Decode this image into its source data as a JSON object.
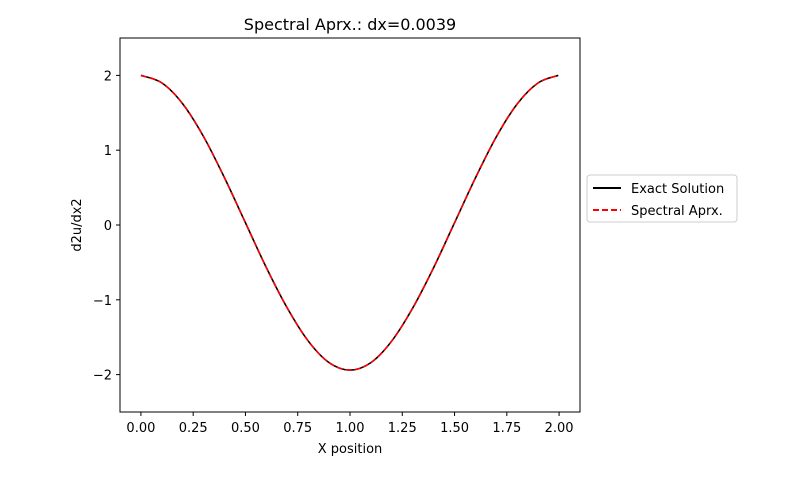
{
  "chart_data": {
    "type": "line",
    "title": "Spectral Aprx.: dx=0.0039",
    "xlabel": "X position",
    "ylabel": "d2u/dx2",
    "xlim": [
      -0.1,
      2.1
    ],
    "ylim": [
      -2.5,
      2.5
    ],
    "x_ticks": [
      0.0,
      0.25,
      0.5,
      0.75,
      1.0,
      1.25,
      1.5,
      1.75,
      2.0
    ],
    "x_tick_labels": [
      "0.00",
      "0.25",
      "0.50",
      "0.75",
      "1.00",
      "1.25",
      "1.50",
      "1.75",
      "2.00"
    ],
    "y_ticks": [
      -2,
      -1,
      0,
      1,
      2
    ],
    "y_tick_labels": [
      "−2",
      "−1",
      "0",
      "1",
      "2"
    ],
    "grid": false,
    "legend_position": "outside-right",
    "series": [
      {
        "name": "Exact Solution",
        "color": "#000000",
        "dash": "solid",
        "x": [
          0.0,
          0.1,
          0.2,
          0.3,
          0.4,
          0.5,
          0.6,
          0.7,
          0.8,
          0.9,
          1.0,
          1.1,
          1.2,
          1.3,
          1.4,
          1.5,
          1.6,
          1.7,
          1.8,
          1.9,
          1.996
        ],
        "y": [
          2.0,
          1.9,
          1.62,
          1.18,
          0.63,
          0.03,
          -0.57,
          -1.11,
          -1.55,
          -1.84,
          -1.94,
          -1.84,
          -1.55,
          -1.11,
          -0.57,
          0.03,
          0.63,
          1.18,
          1.62,
          1.9,
          2.0
        ]
      },
      {
        "name": "Spectral Aprx.",
        "color": "#ff0000",
        "dash": "dashed",
        "x": [
          0.0,
          0.1,
          0.2,
          0.3,
          0.4,
          0.5,
          0.6,
          0.7,
          0.8,
          0.9,
          1.0,
          1.1,
          1.2,
          1.3,
          1.4,
          1.5,
          1.6,
          1.7,
          1.8,
          1.9,
          1.996
        ],
        "y": [
          2.0,
          1.9,
          1.62,
          1.18,
          0.63,
          0.03,
          -0.57,
          -1.11,
          -1.55,
          -1.84,
          -1.94,
          -1.84,
          -1.55,
          -1.11,
          -0.57,
          0.03,
          0.63,
          1.18,
          1.62,
          1.9,
          2.0
        ]
      }
    ]
  }
}
